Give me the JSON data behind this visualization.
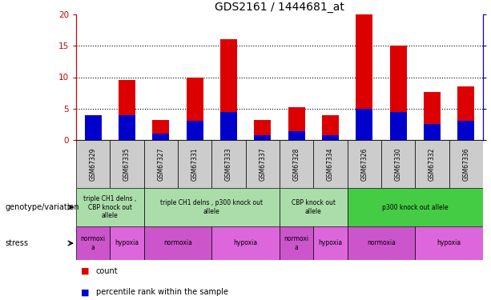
{
  "title": "GDS2161 / 1444681_at",
  "samples": [
    "GSM67329",
    "GSM67335",
    "GSM67327",
    "GSM67331",
    "GSM67333",
    "GSM67337",
    "GSM67328",
    "GSM67334",
    "GSM67326",
    "GSM67330",
    "GSM67332",
    "GSM67336"
  ],
  "count_values": [
    3.0,
    9.5,
    3.2,
    10.0,
    16.0,
    3.2,
    5.2,
    4.0,
    20.0,
    15.0,
    7.7,
    8.5
  ],
  "percentile_values": [
    20,
    20,
    5,
    15,
    22,
    4,
    7,
    4,
    25,
    22,
    13,
    15
  ],
  "ylim_left": [
    0,
    20
  ],
  "ylim_right": [
    0,
    100
  ],
  "yticks_left": [
    0,
    5,
    10,
    15,
    20
  ],
  "yticks_right": [
    0,
    25,
    50,
    75,
    100
  ],
  "bar_color_red": "#dd0000",
  "bar_color_blue": "#0000cc",
  "bar_width": 0.5,
  "genotype_groups": [
    {
      "label": "triple CH1 delns ,\nCBP knock out\nallele",
      "start": 0,
      "end": 2,
      "color": "#aaddaa"
    },
    {
      "label": "triple CH1 delns , p300 knock out\nallele",
      "start": 2,
      "end": 6,
      "color": "#aaddaa"
    },
    {
      "label": "CBP knock out\nallele",
      "start": 6,
      "end": 8,
      "color": "#aaddaa"
    },
    {
      "label": "p300 knock out allele",
      "start": 8,
      "end": 12,
      "color": "#44cc44"
    }
  ],
  "stress_groups": [
    {
      "label": "normoxi\na",
      "start": 0,
      "end": 1,
      "color": "#cc55cc"
    },
    {
      "label": "hypoxia",
      "start": 1,
      "end": 2,
      "color": "#dd66dd"
    },
    {
      "label": "normoxia",
      "start": 2,
      "end": 4,
      "color": "#cc55cc"
    },
    {
      "label": "hypoxia",
      "start": 4,
      "end": 6,
      "color": "#dd66dd"
    },
    {
      "label": "normoxi\na",
      "start": 6,
      "end": 7,
      "color": "#cc55cc"
    },
    {
      "label": "hypoxia",
      "start": 7,
      "end": 8,
      "color": "#dd66dd"
    },
    {
      "label": "normoxia",
      "start": 8,
      "end": 10,
      "color": "#cc55cc"
    },
    {
      "label": "hypoxia",
      "start": 10,
      "end": 12,
      "color": "#dd66dd"
    }
  ],
  "left_axis_color": "#cc0000",
  "right_axis_color": "#0000cc",
  "grid_color": "#000000",
  "genotype_label": "genotype/variation",
  "stress_label": "stress",
  "legend_count": "count",
  "legend_percentile": "percentile rank within the sample",
  "sample_box_color": "#cccccc"
}
